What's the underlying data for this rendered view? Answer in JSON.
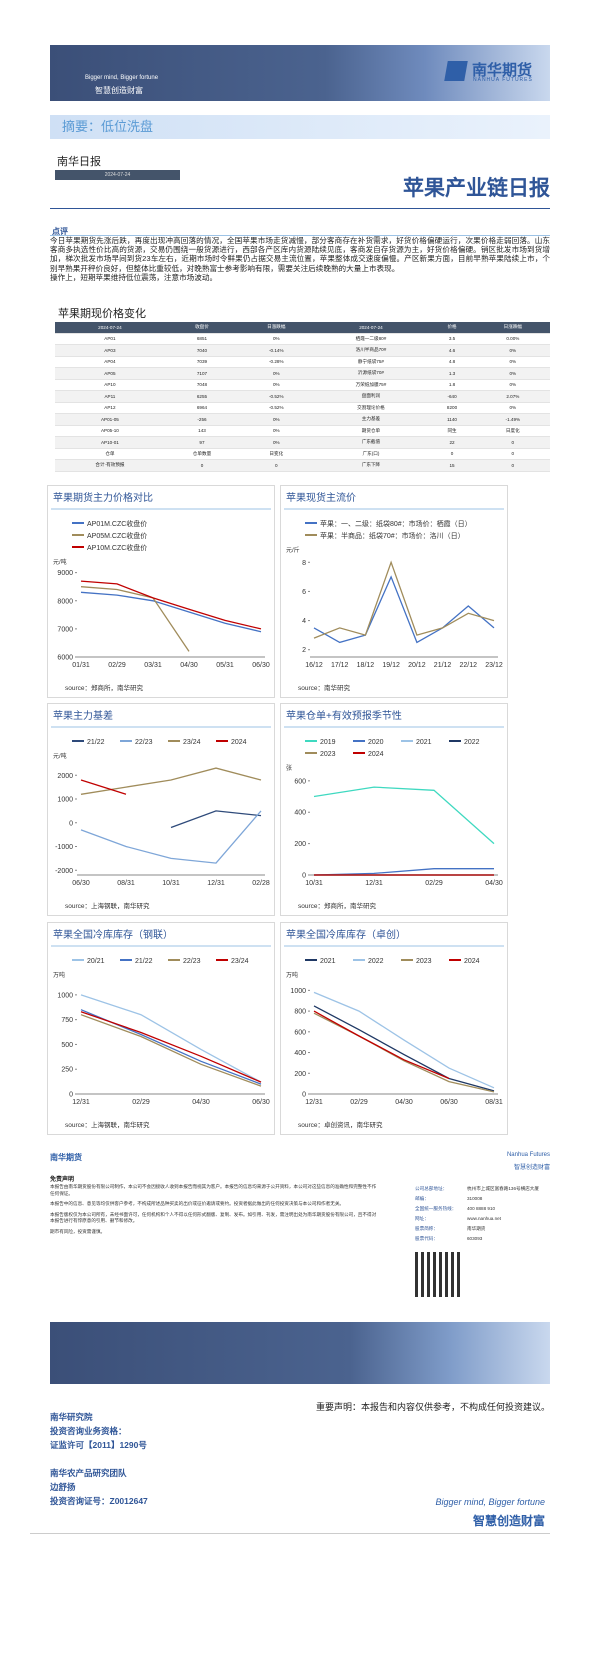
{
  "header": {
    "slogan_en": "Bigger mind, Bigger fortune",
    "slogan_cn": "智慧创造财富",
    "logo_cn": "南华期货",
    "logo_en": "NANHUA FUTURES"
  },
  "summary": "摘要：低位洗盘",
  "report_name": "南华日报",
  "date": "2024-07-24",
  "title": "苹果产业链日报",
  "comment": {
    "heading": "点评",
    "paragraphs": [
      "今日苹果期货先涨后跌，再度出现冲高回落的情况，全国苹果市场走货减慢，部分客商存在补货需求，好货价格偏硬运行，次果价格走弱回落。山东客商多执选性价比高的货源，交易仍围绕一般货源进行，西部各产区库内货源陆续见底，客商发自存货源为主，好货价格偏硬。销区批发市场到货增加，梯次批发市场早间到货23车左右，近期市场时令鲜果仍占据交易主流位置，苹果整体成交速度偏慢。产区新果方面，目前早熟苹果陆续上市，个别早熟果开秤价良好，但整体比重较低，对晚熟富士参考影响有限，需要关注后续晚熟的大量上市表现。",
      "操作上，短期苹果维持低位震荡，注意市场波动。"
    ]
  },
  "table": {
    "title": "苹果期现价格变化",
    "header": [
      "2024-07-24",
      "收盘价",
      "日涨跌幅",
      "2024-07-24",
      "价格",
      "日涨跌幅"
    ],
    "rows": [
      [
        "AP01",
        "6851",
        "0%",
        "栖霞一二级80#",
        "3.5",
        "0.00%"
      ],
      [
        "AP03",
        "7040",
        "-0.14%",
        "洛川半商品70#",
        "4.6",
        "0%"
      ],
      [
        "AP04",
        "7039",
        "-0.28%",
        "静宁纸袋75#",
        "4.8",
        "0%"
      ],
      [
        "AP05",
        "7107",
        "0%",
        "沂源纸袋70#",
        "1.3",
        "0%"
      ],
      [
        "AP10",
        "7048",
        "0%",
        "万荣纸加膜75#",
        "1.8",
        "0%"
      ],
      [
        "AP11",
        "6255",
        "-0.52%",
        "盘面利润",
        "-640",
        "2.07%"
      ],
      [
        "AP12",
        "6964",
        "-0.52%",
        "交割理论价格",
        "8200",
        "0%"
      ],
      [
        "AP01-05",
        "-256",
        "0%",
        "主力基差",
        "1140",
        "-1.49%"
      ],
      [
        "AP05-10",
        "143",
        "0%",
        "期货仓单",
        "同生",
        "日度化"
      ],
      [
        "AP10-01",
        "97",
        "0%",
        "广东截值",
        "22",
        "0"
      ],
      [
        "仓单",
        "仓单数量",
        "日变化",
        "广东(口)",
        "0",
        "0"
      ],
      [
        "合计·有效预报",
        "0",
        "0",
        "广东下降",
        "15",
        "0"
      ]
    ]
  },
  "charts": [
    {
      "type": "line",
      "title": "苹果期货主力价格对比",
      "ylabel": "元/吨",
      "ylim": [
        6000,
        9200
      ],
      "yticks": [
        6000,
        7000,
        8000,
        9000
      ],
      "categories": [
        "01/31",
        "02/29",
        "03/31",
        "04/30",
        "05/31",
        "06/30"
      ],
      "series": [
        {
          "name": "AP01M.CZC收盘价",
          "color": "#4472c4",
          "values": [
            8300,
            8200,
            8000,
            7600,
            7200,
            6900
          ]
        },
        {
          "name": "AP05M.CZC收盘价",
          "color": "#a08c5b",
          "values": [
            8500,
            8400,
            8100,
            6200,
            null,
            null
          ]
        },
        {
          "name": "AP10M.CZC收盘价",
          "color": "#c00000",
          "values": [
            8700,
            8600,
            8100,
            7700,
            7300,
            7000
          ]
        }
      ],
      "source": "source：郑商所，南华研究"
    },
    {
      "type": "line",
      "title": "苹果现货主流价",
      "ylabel": "元/斤",
      "ylim": [
        1.5,
        8.5
      ],
      "yticks": [
        2,
        4,
        6,
        8
      ],
      "categories": [
        "16/12",
        "17/12",
        "18/12",
        "19/12",
        "20/12",
        "21/12",
        "22/12",
        "23/12"
      ],
      "series": [
        {
          "name": "苹果：一、二级：纸袋80#：市场价：栖霞（日）",
          "color": "#4472c4",
          "values": [
            3.5,
            2.5,
            3,
            7,
            2.5,
            3.5,
            5,
            3.5
          ]
        },
        {
          "name": "苹果：半商品：纸袋70#：市场价：洛川（日）",
          "color": "#a08c5b",
          "values": [
            2.8,
            3.5,
            3,
            8,
            3,
            3.5,
            4.5,
            4
          ]
        }
      ],
      "source": "source：南华研究"
    },
    {
      "type": "line",
      "title": "苹果主力基差",
      "ylabel": "元/吨",
      "ylim": [
        -2200,
        2600
      ],
      "yticks": [
        -2000,
        -1000,
        0,
        1000,
        2000
      ],
      "categories": [
        "06/30",
        "08/31",
        "10/31",
        "12/31",
        "02/28"
      ],
      "series": [
        {
          "name": "21/22",
          "color": "#2e4a7a",
          "values": [
            null,
            null,
            -200,
            500,
            300
          ]
        },
        {
          "name": "22/23",
          "color": "#7ea6d8",
          "values": [
            -300,
            -1000,
            -1500,
            -1700,
            500
          ]
        },
        {
          "name": "23/24",
          "color": "#a08c5b",
          "values": [
            1200,
            1500,
            1800,
            2300,
            1800
          ]
        },
        {
          "name": "2024",
          "color": "#c00000",
          "values": [
            1800,
            1200,
            null,
            null,
            null
          ]
        }
      ],
      "source": "source：上海钢联，南华研究"
    },
    {
      "type": "line",
      "title": "苹果仓单+有效预报季节性",
      "ylabel": "张",
      "ylim": [
        0,
        650
      ],
      "yticks": [
        0,
        200,
        400,
        600
      ],
      "categories": [
        "10/31",
        "12/31",
        "02/29",
        "04/30"
      ],
      "series": [
        {
          "name": "2019",
          "color": "#3fd9c0",
          "values": [
            500,
            560,
            540,
            200
          ]
        },
        {
          "name": "2020",
          "color": "#4472c4",
          "values": [
            0,
            10,
            40,
            40
          ]
        },
        {
          "name": "2021",
          "color": "#9dc3e6",
          "values": [
            0,
            0,
            0,
            0
          ]
        },
        {
          "name": "2022",
          "color": "#1f3864",
          "values": [
            0,
            0,
            0,
            0
          ]
        },
        {
          "name": "2023",
          "color": "#a08c5b",
          "values": [
            0,
            0,
            0,
            0
          ]
        },
        {
          "name": "2024",
          "color": "#c00000",
          "values": [
            0,
            0,
            0,
            0
          ]
        }
      ],
      "source": "source：郑商所，南华研究"
    },
    {
      "type": "line",
      "title": "苹果全国冷库库存（钢联）",
      "ylabel": "万吨",
      "ylim": [
        0,
        1150
      ],
      "yticks": [
        0,
        250,
        500,
        750,
        1000
      ],
      "categories": [
        "12/31",
        "02/29",
        "04/30",
        "06/30"
      ],
      "series": [
        {
          "name": "20/21",
          "color": "#9dc3e6",
          "values": [
            1000,
            800,
            450,
            120
          ]
        },
        {
          "name": "21/22",
          "color": "#4472c4",
          "values": [
            850,
            600,
            330,
            100
          ]
        },
        {
          "name": "22/23",
          "color": "#a08c5b",
          "values": [
            800,
            580,
            300,
            80
          ]
        },
        {
          "name": "23/24",
          "color": "#c00000",
          "values": [
            830,
            620,
            380,
            120
          ]
        }
      ],
      "source": "source：上海钢联，南华研究"
    },
    {
      "type": "line",
      "title": "苹果全国冷库库存（卓创）",
      "ylabel": "万吨",
      "ylim": [
        0,
        1100
      ],
      "yticks": [
        0,
        200,
        400,
        600,
        800,
        1000
      ],
      "categories": [
        "12/31",
        "02/29",
        "04/30",
        "06/30",
        "08/31"
      ],
      "series": [
        {
          "name": "2021",
          "color": "#1f3864",
          "values": [
            850,
            620,
            380,
            150,
            30
          ]
        },
        {
          "name": "2022",
          "color": "#9dc3e6",
          "values": [
            980,
            800,
            520,
            250,
            60
          ]
        },
        {
          "name": "2023",
          "color": "#a08c5b",
          "values": [
            780,
            560,
            320,
            120,
            20
          ]
        },
        {
          "name": "2024",
          "color": "#c00000",
          "values": [
            800,
            560,
            330,
            150,
            null
          ]
        }
      ],
      "source": "source：卓创资讯，南华研究"
    }
  ],
  "disclaimer": {
    "logo": "南华期货",
    "right_logo": "Nanhua Futures",
    "right_slogan": "智慧创造财富",
    "heading": "免责声明",
    "paragraphs": [
      "本报告由南华期货股份有限公司制作，本公司不会因接收人收到本报告而视其为客户。本报告的信息均来源于公开资料，本公司对这些信息的准确性和完整性不作任何保证。",
      "本报告中的信息、意见等均仅供客户参考，不构成所述品种买卖的出价或征价邀请或要约。投资者据此做出的任何投资决策与本公司和作者无关。",
      "本报告版权仅为本公司所有，未经书面许可，任何机构和个人不得以任何形式翻版、复制、发布。如引用、刊发，需注明出处为南华期货股份有限公司，且不得对本报告进行有悖原意的引用、删节和修改。",
      "期市有风险，投资需谨慎。"
    ],
    "contact": [
      [
        "公司总部地址：",
        "杭州市上城区富春路136号横店大厦"
      ],
      [
        "邮编：",
        "310008"
      ],
      [
        "全国统一服务热线：",
        "400 8888 910"
      ],
      [
        "网址：",
        "www.nanhua.net"
      ],
      [
        "股票简称：",
        "南华期货"
      ],
      [
        "股票代码：",
        "603093"
      ]
    ]
  },
  "footer": {
    "statement": "重要声明：本报告和内容仅供参考，不构成任何投资建议。",
    "left": [
      "南华研究院",
      "投资咨询业务资格：",
      "证监许可【2011】1290号",
      "",
      "南华农产品研究团队",
      "边舒扬",
      "投资咨询证号：Z0012647"
    ],
    "slogan_en": "Bigger mind, Bigger fortune",
    "slogan_cn": "智慧创造财富"
  }
}
